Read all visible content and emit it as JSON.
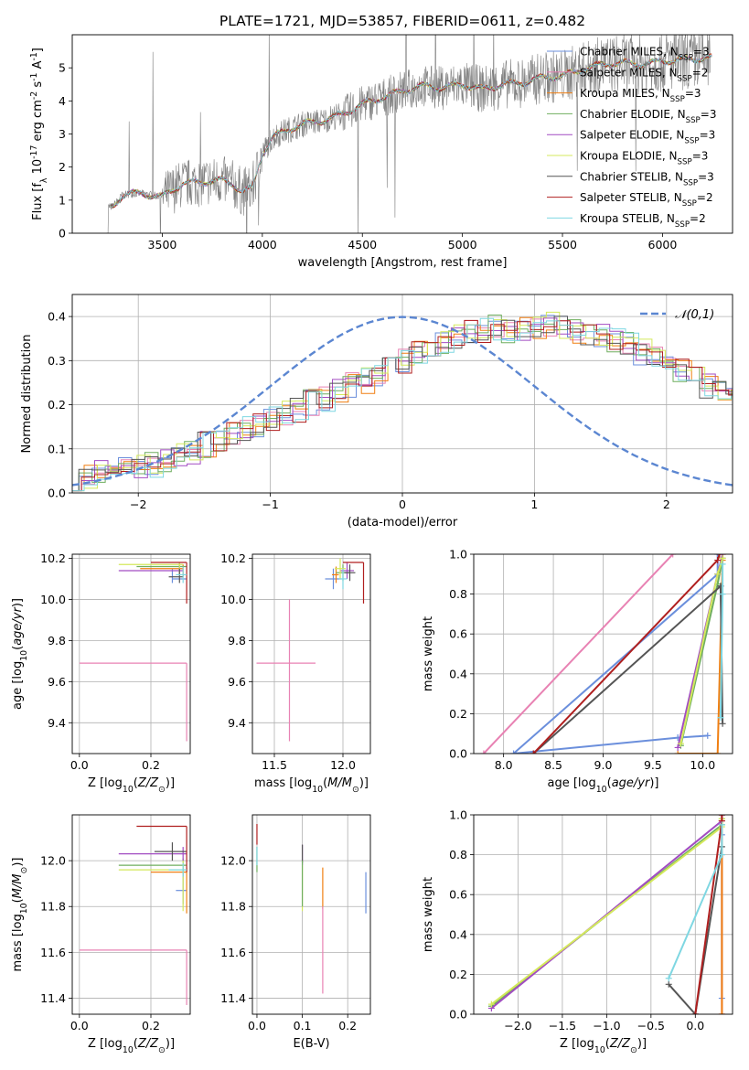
{
  "figure_title": "PLATE=1721, MJD=53857, FIBERID=0611, z=0.482",
  "colors": {
    "Chabrier MILES": "#6b8fdc",
    "Salpeter MILES": "#e882b3",
    "Kroupa MILES": "#f07f12",
    "Chabrier ELODIE": "#6fae5f",
    "Salpeter ELODIE": "#a24cc2",
    "Kroupa ELODIE": "#d4e95c",
    "Chabrier STELIB": "#555555",
    "Salpeter STELIB": "#b01f1f",
    "Kroupa STELIB": "#7fd7e2",
    "data": "#808080",
    "normal": "#5b86d1"
  },
  "chart_data": [
    {
      "id": "spectrum",
      "type": "line",
      "title": "PLATE=1721, MJD=53857, FIBERID=0611, z=0.482",
      "xlabel": "wavelength [Angstrom, rest frame]",
      "ylabel": "Flux [f$_\\lambda$ 10$^{-17}$ erg cm$^{-2}$ s$^{-1}$ A$^{-1}$]",
      "xlim": [
        3050,
        6350
      ],
      "ylim": [
        0,
        6
      ],
      "xticks": [
        3500,
        4000,
        4500,
        5000,
        5500,
        6000
      ],
      "yticks": [
        0,
        1,
        2,
        3,
        4,
        5
      ],
      "grid": false,
      "legend_position": "right",
      "legend": [
        "Chabrier MILES, N$_{SSP}$=3",
        "Salpeter MILES, N$_{SSP}$=2",
        "Kroupa MILES, N$_{SSP}$=3",
        "Chabrier ELODIE, N$_{SSP}$=3",
        "Salpeter ELODIE, N$_{SSP}$=3",
        "Kroupa ELODIE, N$_{SSP}$=3",
        "Chabrier STELIB, N$_{SSP}$=3",
        "Salpeter STELIB, N$_{SSP}$=2",
        "Kroupa STELIB, N$_{SSP}$=2"
      ],
      "model_continuum": {
        "x": [
          3250,
          3280,
          3300,
          3350,
          3400,
          3450,
          3500,
          3550,
          3600,
          3700,
          3800,
          3850,
          3900,
          3950,
          4000,
          4050,
          4100,
          4200,
          4300,
          4400,
          4500,
          4600,
          4700,
          4800,
          4900,
          5000,
          5100,
          5200,
          5300,
          5400,
          5500,
          5600,
          5700,
          5800,
          5900,
          6000,
          6100,
          6250
        ],
        "y": [
          0.8,
          1.0,
          1.15,
          1.2,
          1.2,
          1.15,
          1.1,
          1.3,
          1.5,
          1.55,
          1.6,
          1.5,
          1.25,
          1.35,
          2.4,
          2.9,
          3.05,
          3.3,
          3.4,
          3.6,
          3.9,
          4.1,
          4.3,
          4.45,
          4.4,
          4.5,
          4.35,
          4.5,
          4.55,
          4.7,
          4.75,
          4.95,
          5.1,
          5.15,
          5.1,
          5.2,
          5.25,
          5.3
        ]
      },
      "data_range": [
        3220,
        6240
      ]
    },
    {
      "id": "residuals",
      "type": "bar",
      "xlabel": "(data-model)/error",
      "ylabel": "Normed distribution",
      "xlim": [
        -2.5,
        2.5
      ],
      "ylim": [
        0,
        0.45
      ],
      "xticks": [
        -2,
        -1,
        0,
        1,
        2
      ],
      "yticks": [
        0.0,
        0.1,
        0.2,
        0.3,
        0.4
      ],
      "grid": true,
      "legend": [
        "$\\mathcal{N}(0,1)$"
      ],
      "legend_position": "top-right",
      "bin_width": 0.1,
      "base_histogram": [
        0.025,
        0.04,
        0.045,
        0.055,
        0.06,
        0.06,
        0.065,
        0.07,
        0.085,
        0.095,
        0.11,
        0.12,
        0.135,
        0.145,
        0.155,
        0.165,
        0.18,
        0.19,
        0.205,
        0.215,
        0.23,
        0.245,
        0.255,
        0.265,
        0.285,
        0.3,
        0.315,
        0.33,
        0.345,
        0.355,
        0.365,
        0.37,
        0.375,
        0.365,
        0.37,
        0.38,
        0.385,
        0.375,
        0.365,
        0.36,
        0.355,
        0.345,
        0.335,
        0.32,
        0.305,
        0.29,
        0.275,
        0.26,
        0.24,
        0.225,
        0.21,
        0.19,
        0.175,
        0.16,
        0.145,
        0.13,
        0.115,
        0.105,
        0.09,
        0.08,
        0.07,
        0.06,
        0.055,
        0.05,
        0.045,
        0.04,
        0.035,
        0.03,
        0.03,
        0.03
      ]
    },
    {
      "id": "age_vs_Z",
      "type": "scatter",
      "xlabel": "Z [log$_{10}$($Z/Z_\\odot$)]",
      "ylabel": "age  [log$_{10}$($age/yr$)]",
      "xlim": [
        -0.02,
        0.31
      ],
      "ylim": [
        9.25,
        10.22
      ],
      "xticks": [
        0.0,
        0.2
      ],
      "yticks": [
        9.4,
        9.6,
        9.8,
        10.0,
        10.2
      ],
      "grid": true,
      "points": [
        {
          "model": "Salpeter MILES",
          "x": 0.3,
          "y": 9.69,
          "xerr": [
            0.3,
            0.0
          ],
          "yerr": [
            0.38,
            0.0
          ]
        },
        {
          "model": "Chabrier MILES",
          "x": 0.26,
          "y": 10.1,
          "xerr": [
            0.0,
            0.04
          ],
          "yerr": [
            0.02,
            0.05
          ]
        },
        {
          "model": "Kroupa MILES",
          "x": 0.29,
          "y": 10.15,
          "xerr": [
            0.12,
            0.0
          ],
          "yerr": [
            0.04,
            0.02
          ]
        },
        {
          "model": "Chabrier ELODIE",
          "x": 0.28,
          "y": 10.16,
          "xerr": [
            0.12,
            0.02
          ],
          "yerr": [
            0.04,
            0.02
          ]
        },
        {
          "model": "Salpeter ELODIE",
          "x": 0.28,
          "y": 10.14,
          "xerr": [
            0.17,
            0.01
          ],
          "yerr": [
            0.02,
            0.04
          ]
        },
        {
          "model": "Kroupa ELODIE",
          "x": 0.28,
          "y": 10.17,
          "xerr": [
            0.17,
            0.01
          ],
          "yerr": [
            0.05,
            0.01
          ]
        },
        {
          "model": "Chabrier STELIB",
          "x": 0.28,
          "y": 10.11,
          "xerr": [
            0.03,
            0.01
          ],
          "yerr": [
            0.03,
            0.04
          ]
        },
        {
          "model": "Salpeter STELIB",
          "x": 0.3,
          "y": 10.18,
          "xerr": [
            0.1,
            0.0
          ],
          "yerr": [
            0.2,
            0.0
          ]
        },
        {
          "model": "Kroupa STELIB",
          "x": 0.29,
          "y": 10.12,
          "xerr": [
            0.02,
            0.01
          ],
          "yerr": [
            0.04,
            0.04
          ]
        }
      ]
    },
    {
      "id": "age_vs_mass",
      "type": "scatter",
      "xlabel": "mass [log$_{10}$($M/M_\\odot$)]",
      "ylabel": "",
      "xlim": [
        11.34,
        12.2
      ],
      "ylim": [
        9.25,
        10.22
      ],
      "xticks": [
        11.5,
        12.0
      ],
      "yticks": [
        9.4,
        9.6,
        9.8,
        10.0,
        10.2
      ],
      "grid": true,
      "points": [
        {
          "model": "Salpeter MILES",
          "x": 11.61,
          "y": 9.69,
          "xerr": [
            0.24,
            0.19
          ],
          "yerr": [
            0.38,
            0.31
          ]
        },
        {
          "model": "Chabrier MILES",
          "x": 11.93,
          "y": 10.1,
          "xerr": [
            0.06,
            0.06
          ],
          "yerr": [
            0.05,
            0.05
          ]
        },
        {
          "model": "Kroupa MILES",
          "x": 11.95,
          "y": 10.12,
          "xerr": [
            0.03,
            0.02
          ],
          "yerr": [
            0.04,
            0.04
          ]
        },
        {
          "model": "Chabrier ELODIE",
          "x": 12.0,
          "y": 10.13,
          "xerr": [
            0.05,
            0.05
          ],
          "yerr": [
            0.04,
            0.04
          ]
        },
        {
          "model": "Salpeter ELODIE",
          "x": 12.03,
          "y": 10.14,
          "xerr": [
            0.05,
            0.05
          ],
          "yerr": [
            0.04,
            0.04
          ]
        },
        {
          "model": "Kroupa ELODIE",
          "x": 11.98,
          "y": 10.15,
          "xerr": [
            0.04,
            0.04
          ],
          "yerr": [
            0.05,
            0.05
          ]
        },
        {
          "model": "Chabrier STELIB",
          "x": 12.05,
          "y": 10.13,
          "xerr": [
            0.04,
            0.04
          ],
          "yerr": [
            0.04,
            0.04
          ]
        },
        {
          "model": "Salpeter STELIB",
          "x": 12.15,
          "y": 10.18,
          "xerr": [
            0.15,
            0.0
          ],
          "yerr": [
            0.2,
            0.0
          ]
        },
        {
          "model": "Kroupa STELIB",
          "x": 12.0,
          "y": 10.1,
          "xerr": [
            0.03,
            0.03
          ],
          "yerr": [
            0.05,
            0.05
          ]
        }
      ]
    },
    {
      "id": "massweight_vs_age",
      "type": "line",
      "xlabel": "age  [log$_{10}$($age/yr$)]",
      "ylabel": "mass weight",
      "xlim": [
        7.7,
        10.3
      ],
      "ylim": [
        0,
        1
      ],
      "xticks": [
        8.0,
        8.5,
        9.0,
        9.5,
        10.0
      ],
      "yticks": [
        0.0,
        0.2,
        0.4,
        0.6,
        0.8,
        1.0
      ],
      "grid": true,
      "series": [
        {
          "name": "Chabrier MILES",
          "x": [
            10.05,
            9.75,
            8.1,
            10.15,
            10.15
          ],
          "y": [
            0.09,
            0.08,
            0.0,
            0.9,
            1.0
          ]
        },
        {
          "name": "Salpeter MILES",
          "x": [
            7.8,
            9.7
          ],
          "y": [
            0.0,
            1.0
          ]
        },
        {
          "name": "Kroupa MILES",
          "x": [
            9.75,
            10.15,
            10.2,
            10.2
          ],
          "y": [
            0.0,
            0.0,
            0.97,
            1.0
          ]
        },
        {
          "name": "Chabrier ELODIE",
          "x": [
            9.78,
            10.15,
            10.2
          ],
          "y": [
            0.04,
            0.85,
            0.98
          ]
        },
        {
          "name": "Salpeter ELODIE",
          "x": [
            9.75,
            10.15,
            10.2
          ],
          "y": [
            0.03,
            0.9,
            1.0
          ]
        },
        {
          "name": "Kroupa ELODIE",
          "x": [
            9.78,
            10.15,
            10.2
          ],
          "y": [
            0.05,
            0.9,
            0.98
          ]
        },
        {
          "name": "Chabrier STELIB",
          "x": [
            10.2,
            10.18,
            8.3,
            10.18
          ],
          "y": [
            0.15,
            0.84,
            0.0,
            0.84
          ]
        },
        {
          "name": "Salpeter STELIB",
          "x": [
            8.3,
            10.15,
            10.17
          ],
          "y": [
            0.0,
            0.97,
            1.0
          ]
        },
        {
          "name": "Kroupa STELIB",
          "x": [
            10.18,
            10.2,
            10.2
          ],
          "y": [
            0.18,
            0.8,
            0.95
          ]
        }
      ]
    },
    {
      "id": "mass_vs_Z",
      "type": "scatter",
      "xlabel": "Z [log$_{10}$($Z/Z_\\odot$)]",
      "ylabel": "mass [log$_{10}$($M/M_\\odot$)]",
      "xlim": [
        -0.02,
        0.31
      ],
      "ylim": [
        11.33,
        12.2
      ],
      "xticks": [
        0.0,
        0.2
      ],
      "yticks": [
        11.4,
        11.6,
        11.8,
        12.0
      ],
      "grid": true,
      "points": [
        {
          "model": "Salpeter MILES",
          "x": 0.3,
          "y": 11.61,
          "xerr": [
            0.3,
            0.0
          ],
          "yerr": [
            0.24,
            0.0
          ]
        },
        {
          "model": "Chabrier MILES",
          "x": 0.29,
          "y": 11.87,
          "xerr": [
            0.02,
            0.01
          ],
          "yerr": [
            0.06,
            0.08
          ]
        },
        {
          "model": "Kroupa MILES",
          "x": 0.3,
          "y": 11.95,
          "xerr": [
            0.1,
            0.0
          ],
          "yerr": [
            0.18,
            0.02
          ]
        },
        {
          "model": "Chabrier ELODIE",
          "x": 0.29,
          "y": 11.98,
          "xerr": [
            0.18,
            0.01
          ],
          "yerr": [
            0.03,
            0.03
          ]
        },
        {
          "model": "Salpeter ELODIE",
          "x": 0.29,
          "y": 12.03,
          "xerr": [
            0.18,
            0.01
          ],
          "yerr": [
            0.03,
            0.03
          ]
        },
        {
          "model": "Kroupa ELODIE",
          "x": 0.29,
          "y": 11.96,
          "xerr": [
            0.18,
            0.01
          ],
          "yerr": [
            0.18,
            0.04
          ]
        },
        {
          "model": "Chabrier STELIB",
          "x": 0.26,
          "y": 12.04,
          "xerr": [
            0.05,
            0.04
          ],
          "yerr": [
            0.04,
            0.04
          ]
        },
        {
          "model": "Salpeter STELIB",
          "x": 0.3,
          "y": 12.15,
          "xerr": [
            0.14,
            0.0
          ],
          "yerr": [
            0.2,
            0.0
          ]
        },
        {
          "model": "Kroupa STELIB",
          "x": 0.29,
          "y": 11.96,
          "xerr": [
            0.04,
            0.01
          ],
          "yerr": [
            0.03,
            0.03
          ]
        }
      ]
    },
    {
      "id": "mass_vs_ebv",
      "type": "scatter",
      "xlabel": "E(B-V)",
      "ylabel": "",
      "xlim": [
        -0.01,
        0.25
      ],
      "ylim": [
        11.33,
        12.2
      ],
      "xticks": [
        0.0,
        0.1,
        0.2
      ],
      "yticks": [
        11.4,
        11.6,
        11.8,
        12.0
      ],
      "grid": true,
      "points": [
        {
          "model": "Chabrier ELODIE",
          "x": 0.0,
          "y": 12.0,
          "xerr": [
            0,
            0
          ],
          "yerr": [
            0.05,
            0.06
          ]
        },
        {
          "model": "Salpeter STELIB",
          "x": 0.0,
          "y": 12.11,
          "xerr": [
            0,
            0
          ],
          "yerr": [
            0.04,
            0.05
          ]
        },
        {
          "model": "Kroupa STELIB",
          "x": 0.0,
          "y": 12.02,
          "xerr": [
            0,
            0
          ],
          "yerr": [
            0.04,
            0.04
          ]
        },
        {
          "model": "Salpeter ELODIE",
          "x": 0.1,
          "y": 12.02,
          "xerr": [
            0,
            0
          ],
          "yerr": [
            0.04,
            0.05
          ]
        },
        {
          "model": "Chabrier STELIB",
          "x": 0.1,
          "y": 12.03,
          "xerr": [
            0,
            0
          ],
          "yerr": [
            0.04,
            0.04
          ]
        },
        {
          "model": "Kroupa ELODIE",
          "x": 0.1,
          "y": 11.88,
          "xerr": [
            0,
            0
          ],
          "yerr": [
            0.1,
            0.1
          ]
        },
        {
          "model": "Chabrier ELODIE",
          "x": 0.1,
          "y": 11.9,
          "xerr": [
            0,
            0
          ],
          "yerr": [
            0.1,
            0.1
          ]
        },
        {
          "model": "Kroupa MILES",
          "x": 0.145,
          "y": 11.82,
          "xerr": [
            0,
            0
          ],
          "yerr": [
            0.03,
            0.15
          ]
        },
        {
          "model": "Salpeter MILES",
          "x": 0.145,
          "y": 11.61,
          "xerr": [
            0,
            0
          ],
          "yerr": [
            0.19,
            0.19
          ]
        },
        {
          "model": "Chabrier MILES",
          "x": 0.24,
          "y": 11.86,
          "xerr": [
            0,
            0
          ],
          "yerr": [
            0.09,
            0.09
          ]
        }
      ]
    },
    {
      "id": "massweight_vs_Z",
      "type": "line",
      "xlabel": "Z [log$_{10}$($Z/Z_\\odot$)]",
      "ylabel": "mass weight",
      "xlim": [
        -2.5,
        0.42
      ],
      "ylim": [
        0,
        1
      ],
      "xticks": [
        -2.0,
        -1.5,
        -1.0,
        -0.5,
        0.0
      ],
      "yticks": [
        0.0,
        0.2,
        0.4,
        0.6,
        0.8,
        1.0
      ],
      "grid": true,
      "series": [
        {
          "name": "Chabrier MILES",
          "x": [
            0.3,
            0.3,
            0.3
          ],
          "y": [
            0.08,
            0.9,
            1.0
          ]
        },
        {
          "name": "Salpeter MILES",
          "x": [
            0.3,
            0.3
          ],
          "y": [
            0.0,
            1.0
          ]
        },
        {
          "name": "Kroupa MILES",
          "x": [
            0.3,
            0.3,
            0.3
          ],
          "y": [
            0.0,
            0.97,
            1.0
          ]
        },
        {
          "name": "Chabrier ELODIE",
          "x": [
            -2.3,
            0.3,
            0.3
          ],
          "y": [
            0.04,
            0.95,
            0.98
          ]
        },
        {
          "name": "Salpeter ELODIE",
          "x": [
            -2.3,
            0.3,
            0.3
          ],
          "y": [
            0.03,
            0.97,
            1.0
          ]
        },
        {
          "name": "Kroupa ELODIE",
          "x": [
            -2.3,
            0.3,
            0.3
          ],
          "y": [
            0.05,
            0.94,
            0.98
          ]
        },
        {
          "name": "Chabrier STELIB",
          "x": [
            -0.3,
            0.0,
            0.3
          ],
          "y": [
            0.15,
            0.0,
            0.84
          ]
        },
        {
          "name": "Salpeter STELIB",
          "x": [
            0.0,
            0.3,
            0.3
          ],
          "y": [
            0.0,
            0.97,
            1.0
          ]
        },
        {
          "name": "Kroupa STELIB",
          "x": [
            -0.3,
            0.3,
            0.3
          ],
          "y": [
            0.18,
            0.8,
            0.95
          ]
        }
      ]
    }
  ]
}
